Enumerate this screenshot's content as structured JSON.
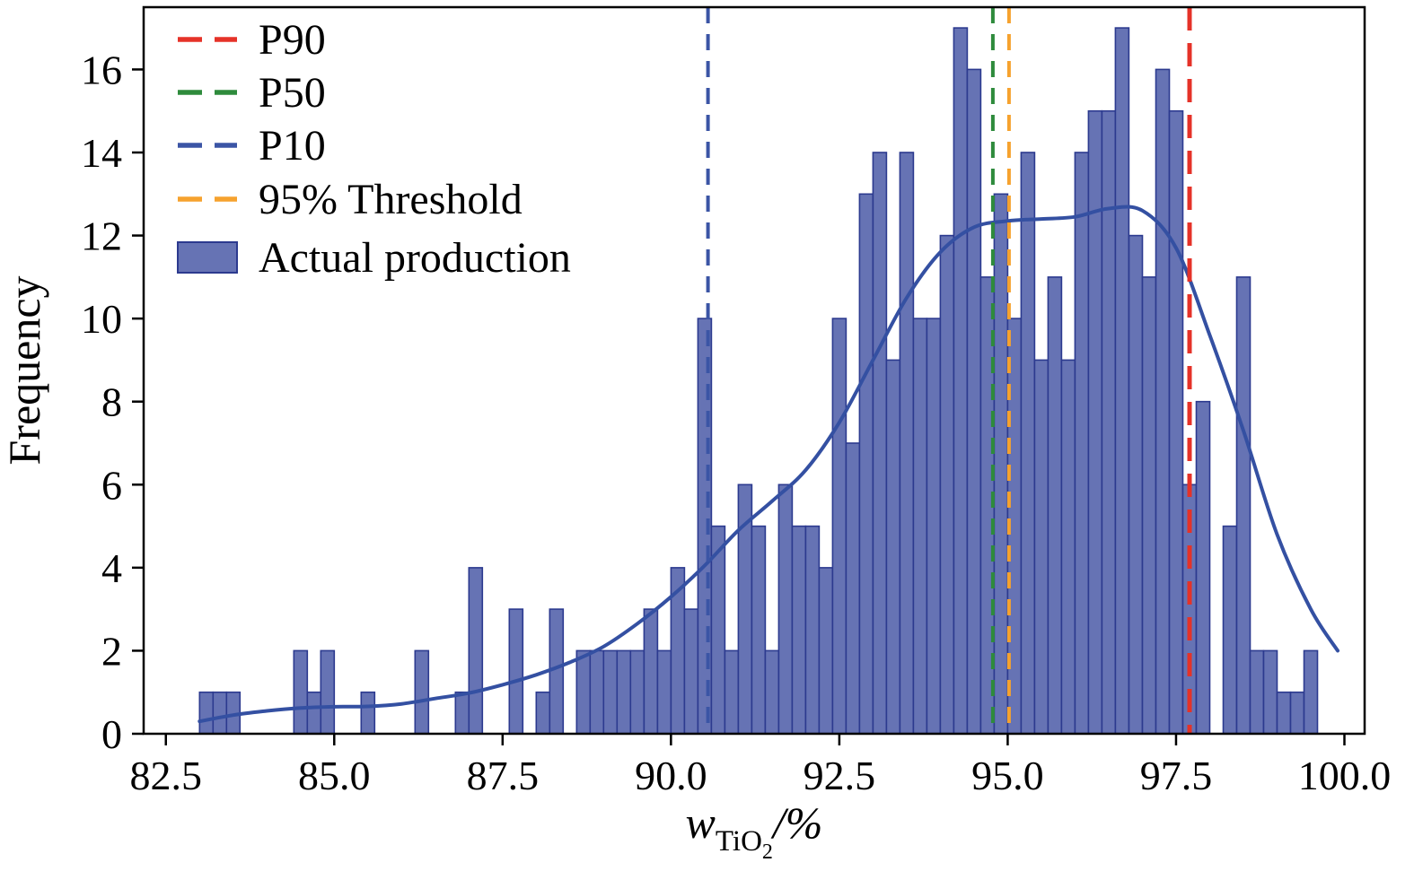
{
  "figure": {
    "background": "#ffffff"
  },
  "chart_data": {
    "type": "histogram",
    "title": "",
    "xlabel": "w_TiO2 / %",
    "xlabel_parts": {
      "variable": "w",
      "subscript": "TiO",
      "subsubscript": "2",
      "suffix": "/%"
    },
    "ylabel": "Frequency",
    "xlim": [
      82.17,
      100.3
    ],
    "ylim": [
      0,
      17.5
    ],
    "x_tick_values": [
      82.5,
      85.0,
      87.5,
      90.0,
      92.5,
      95.0,
      97.5,
      100.0
    ],
    "x_tick_labels": [
      "82.5",
      "85.0",
      "87.5",
      "90.0",
      "92.5",
      "95.0",
      "97.5",
      "100.0"
    ],
    "y_tick_values": [
      0,
      2,
      4,
      6,
      8,
      10,
      12,
      14,
      16
    ],
    "y_tick_labels": [
      "0",
      "2",
      "4",
      "6",
      "8",
      "10",
      "12",
      "14",
      "16"
    ],
    "grid": false,
    "bin_width": 0.2,
    "histogram": {
      "name": "Actual production",
      "fill": "#6673b4",
      "edge": "#2c3a8f",
      "bins": [
        [
          83.1,
          1
        ],
        [
          83.3,
          1
        ],
        [
          83.5,
          1
        ],
        [
          84.5,
          2
        ],
        [
          84.7,
          1
        ],
        [
          84.9,
          2
        ],
        [
          85.5,
          1
        ],
        [
          86.3,
          2
        ],
        [
          86.9,
          1
        ],
        [
          87.1,
          4
        ],
        [
          87.7,
          3
        ],
        [
          88.1,
          1
        ],
        [
          88.3,
          3
        ],
        [
          88.7,
          2
        ],
        [
          88.9,
          2
        ],
        [
          89.1,
          2
        ],
        [
          89.3,
          2
        ],
        [
          89.5,
          2
        ],
        [
          89.7,
          3
        ],
        [
          89.9,
          2
        ],
        [
          90.1,
          4
        ],
        [
          90.3,
          3
        ],
        [
          90.5,
          10
        ],
        [
          90.7,
          5
        ],
        [
          90.9,
          2
        ],
        [
          91.1,
          6
        ],
        [
          91.3,
          5
        ],
        [
          91.5,
          2
        ],
        [
          91.7,
          6
        ],
        [
          91.9,
          5
        ],
        [
          92.1,
          5
        ],
        [
          92.3,
          4
        ],
        [
          92.5,
          10
        ],
        [
          92.7,
          7
        ],
        [
          92.9,
          13
        ],
        [
          93.1,
          14
        ],
        [
          93.3,
          9
        ],
        [
          93.5,
          14
        ],
        [
          93.7,
          10
        ],
        [
          93.9,
          10
        ],
        [
          94.1,
          12
        ],
        [
          94.3,
          17
        ],
        [
          94.5,
          16
        ],
        [
          94.7,
          11
        ],
        [
          94.9,
          13
        ],
        [
          95.1,
          10
        ],
        [
          95.3,
          14
        ],
        [
          95.5,
          9
        ],
        [
          95.7,
          11
        ],
        [
          95.9,
          9
        ],
        [
          96.1,
          14
        ],
        [
          96.3,
          15
        ],
        [
          96.5,
          15
        ],
        [
          96.7,
          17
        ],
        [
          96.9,
          12
        ],
        [
          97.1,
          11
        ],
        [
          97.3,
          16
        ],
        [
          97.5,
          15
        ],
        [
          97.7,
          6
        ],
        [
          97.9,
          8
        ],
        [
          98.3,
          5
        ],
        [
          98.5,
          11
        ],
        [
          98.7,
          2
        ],
        [
          98.9,
          2
        ],
        [
          99.1,
          1
        ],
        [
          99.3,
          1
        ],
        [
          99.5,
          2
        ]
      ]
    },
    "kde_curve": {
      "name": "density-curve",
      "color": "#3450a2",
      "points": [
        [
          83.0,
          0.3
        ],
        [
          83.5,
          0.45
        ],
        [
          84.0,
          0.55
        ],
        [
          84.5,
          0.62
        ],
        [
          85.0,
          0.65
        ],
        [
          85.5,
          0.66
        ],
        [
          86.0,
          0.72
        ],
        [
          86.5,
          0.85
        ],
        [
          87.0,
          0.98
        ],
        [
          87.5,
          1.18
        ],
        [
          88.0,
          1.42
        ],
        [
          88.5,
          1.72
        ],
        [
          89.0,
          2.1
        ],
        [
          89.5,
          2.65
        ],
        [
          90.0,
          3.3
        ],
        [
          90.5,
          4.05
        ],
        [
          91.0,
          4.9
        ],
        [
          91.5,
          5.6
        ],
        [
          92.0,
          6.35
        ],
        [
          92.5,
          7.5
        ],
        [
          93.0,
          9.0
        ],
        [
          93.5,
          10.5
        ],
        [
          94.0,
          11.6
        ],
        [
          94.5,
          12.2
        ],
        [
          95.0,
          12.35
        ],
        [
          95.5,
          12.4
        ],
        [
          96.0,
          12.45
        ],
        [
          96.5,
          12.65
        ],
        [
          97.0,
          12.6
        ],
        [
          97.5,
          11.7
        ],
        [
          98.0,
          9.6
        ],
        [
          98.5,
          7.3
        ],
        [
          99.0,
          4.8
        ],
        [
          99.5,
          3.0
        ],
        [
          99.9,
          2.0
        ]
      ]
    },
    "vlines": [
      {
        "name": "P10",
        "x": 90.55,
        "color": "#3b55a5",
        "dash": "18 12",
        "width": 4
      },
      {
        "name": "P50",
        "x": 94.78,
        "color": "#2e8b3c",
        "dash": "18 12",
        "width": 4
      },
      {
        "name": "95% Threshold",
        "x": 95.02,
        "color": "#f6a22e",
        "dash": "18 12",
        "width": 4
      },
      {
        "name": "P90",
        "x": 97.7,
        "color": "#e53228",
        "dash": "26 14",
        "width": 5
      }
    ],
    "legend": {
      "position": "upper-left",
      "entries": [
        {
          "label": "P90",
          "swatch": "dashed-line",
          "color": "#e53228"
        },
        {
          "label": "P50",
          "swatch": "dashed-line",
          "color": "#2e8b3c"
        },
        {
          "label": "P10",
          "swatch": "dashed-line",
          "color": "#3b55a5"
        },
        {
          "label": "95% Threshold",
          "swatch": "dashed-line",
          "color": "#f6a22e"
        },
        {
          "label": "Actual production",
          "swatch": "patch",
          "color": "#6673b4",
          "edge": "#2c3a8f"
        }
      ]
    }
  }
}
